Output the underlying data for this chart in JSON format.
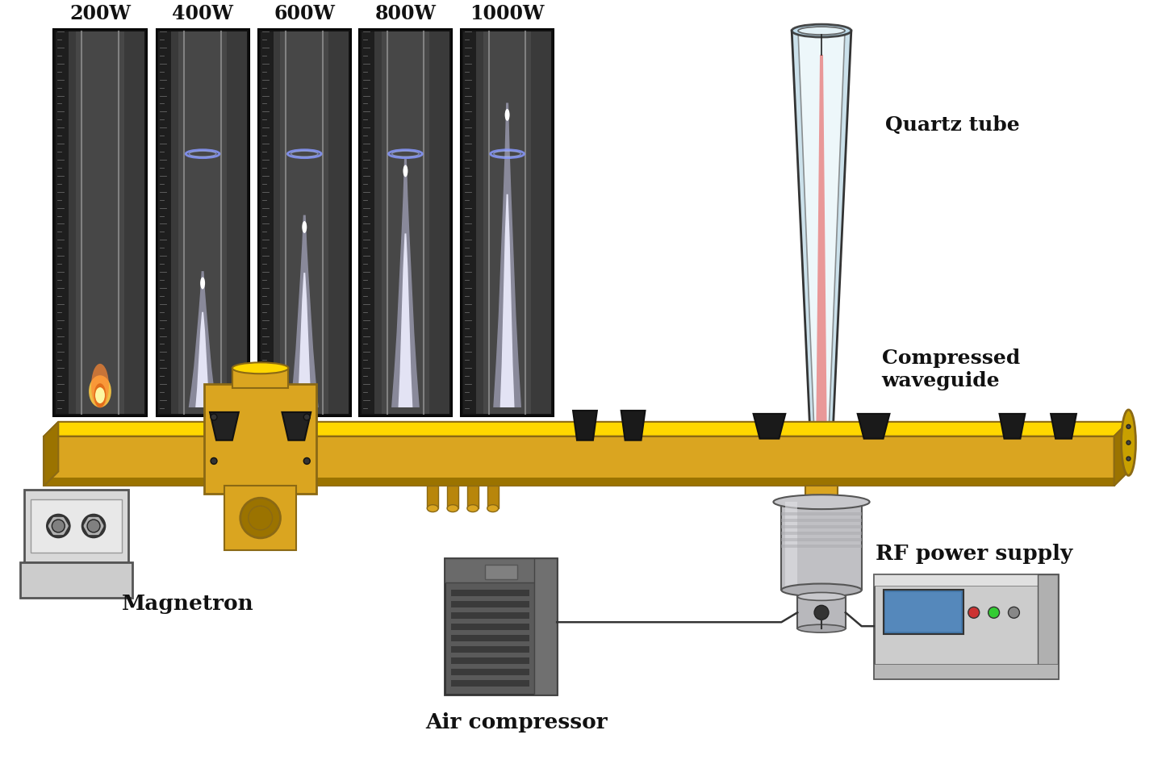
{
  "bg_color": "#ffffff",
  "power_labels": [
    "200W",
    "400W",
    "600W",
    "800W",
    "1000W"
  ],
  "label_quartz_tube": "Quartz tube",
  "label_compressed_waveguide": "Compressed\nwaveguide",
  "label_magnetron": "Magnetron",
  "label_air_compressor": "Air compressor",
  "label_rf_power_supply": "RF power supply",
  "waveguide_color": "#DAA520",
  "waveguide_highlight": "#FFD700",
  "waveguide_shadow": "#9B7300",
  "waveguide_dark": "#8B6914",
  "plasma_color": "#e87878"
}
